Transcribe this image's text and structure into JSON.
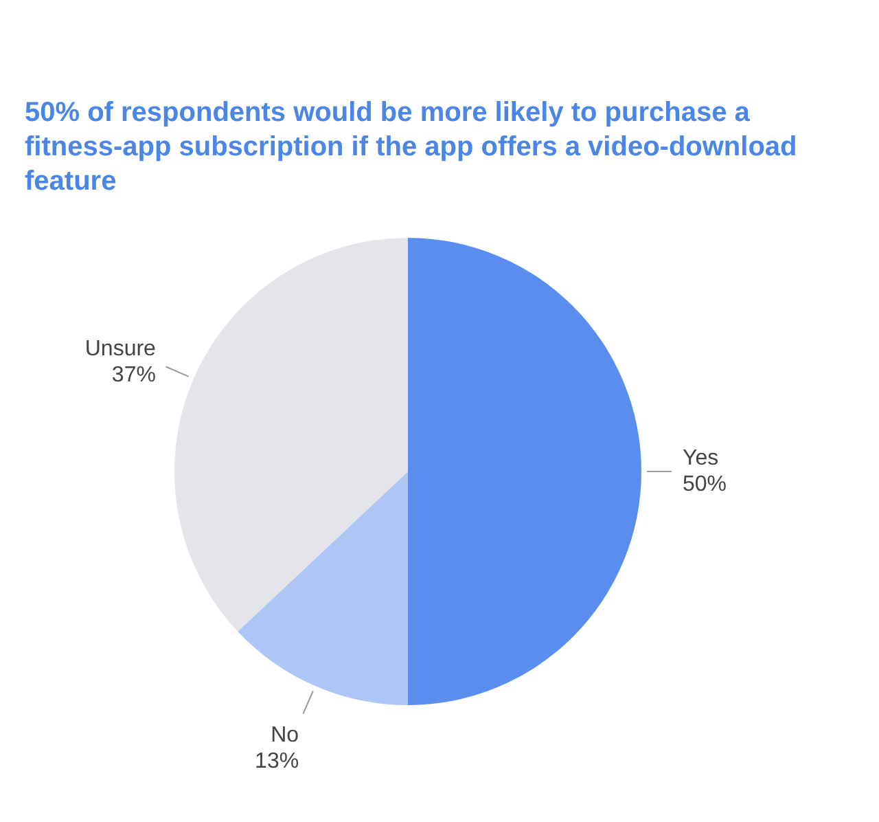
{
  "chart_data": {
    "type": "pie",
    "title": "50% of respondents would be more likely to purchase a fitness-app subscription if the app offers a video-download feature",
    "categories": [
      "Yes",
      "No",
      "Unsure"
    ],
    "values": [
      50,
      13,
      37
    ],
    "value_labels": [
      "50%",
      "13%",
      "37%"
    ],
    "colors": [
      "#5b8def",
      "#aec6f5",
      "#e3e5ea"
    ],
    "legend": false
  }
}
